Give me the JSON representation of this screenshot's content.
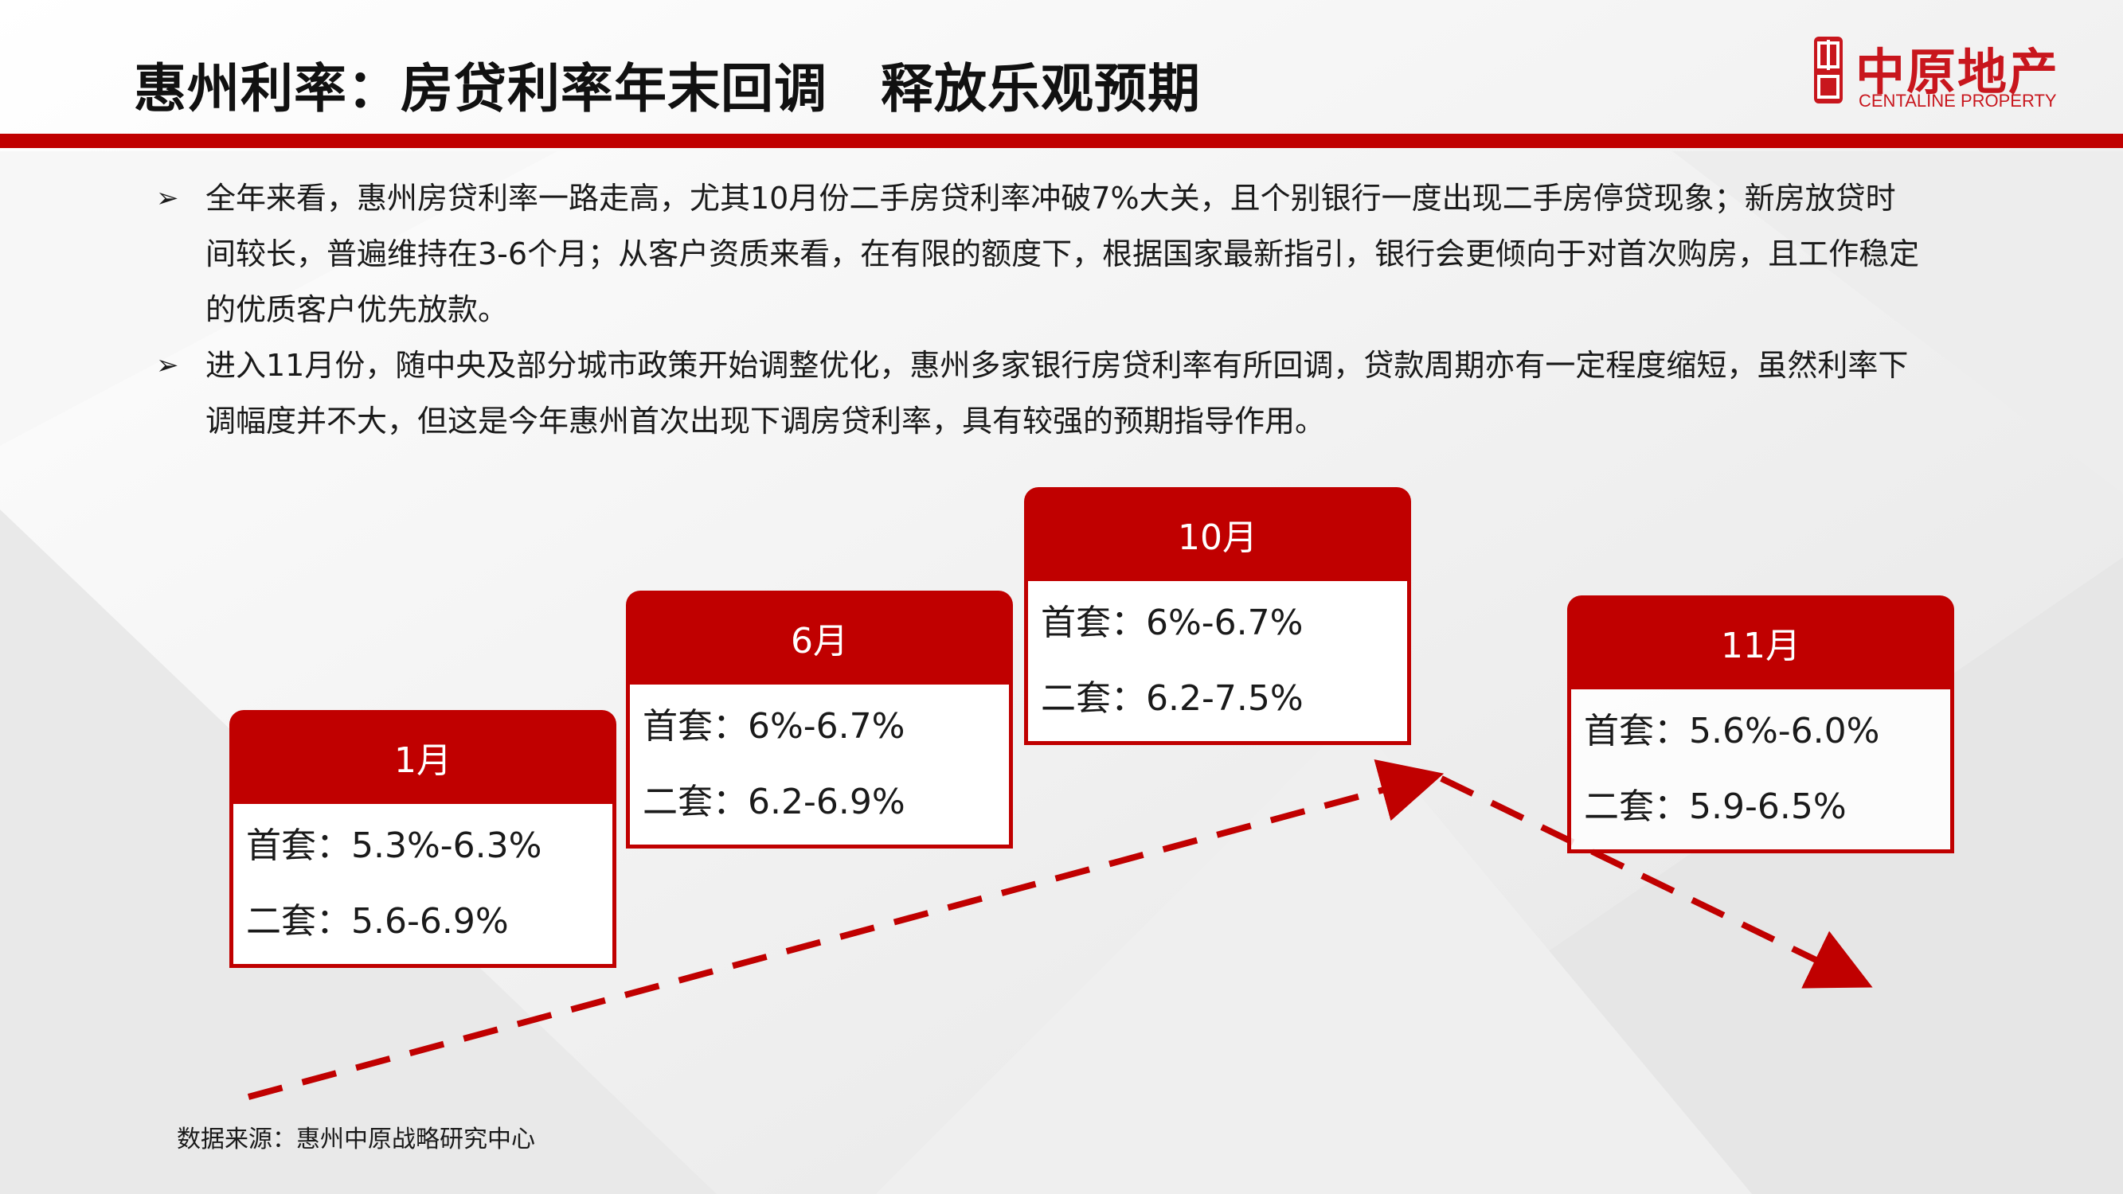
{
  "title": "惠州利率：房贷利率年末回调　释放乐观预期",
  "logo": {
    "cn": "中原地产",
    "en": "CENTALINE PROPERTY",
    "seal": "中原"
  },
  "colors": {
    "accent": "#c00000",
    "brand": "#c8161d",
    "text": "#1a1a1a"
  },
  "bullets": [
    {
      "marker": "➢",
      "text": "全年来看，惠州房贷利率一路走高，尤其10月份二手房贷利率冲破7%大关，且个别银行一度出现二手房停贷现象；新房放贷时间较长，普遍维持在3-6个月；从客户资质来看，在有限的额度下，根据国家最新指引，银行会更倾向于对首次购房，且工作稳定的优质客户优先放款。"
    },
    {
      "marker": "➢",
      "text": "进入11月份，随中央及部分城市政策开始调整优化，惠州多家银行房贷利率有所回调，贷款周期亦有一定程度缩短，虽然利率下调幅度并不大，但这是今年惠州首次出现下调房贷利率，具有较强的预期指导作用。"
    }
  ],
  "cards": [
    {
      "month": "1月",
      "first": "首套：5.3%-6.3%",
      "second": "二套：5.6-6.9%"
    },
    {
      "month": "6月",
      "first": "首套：6%-6.7%",
      "second": "二套：6.2-6.9%"
    },
    {
      "month": "10月",
      "first": "首套：6%-6.7%",
      "second": "二套：6.2-7.5%"
    },
    {
      "month": "11月",
      "first": "首套：5.6%-6.0%",
      "second": "二套：5.9-6.5%"
    }
  ],
  "source": "数据来源：惠州中原战略研究中心"
}
